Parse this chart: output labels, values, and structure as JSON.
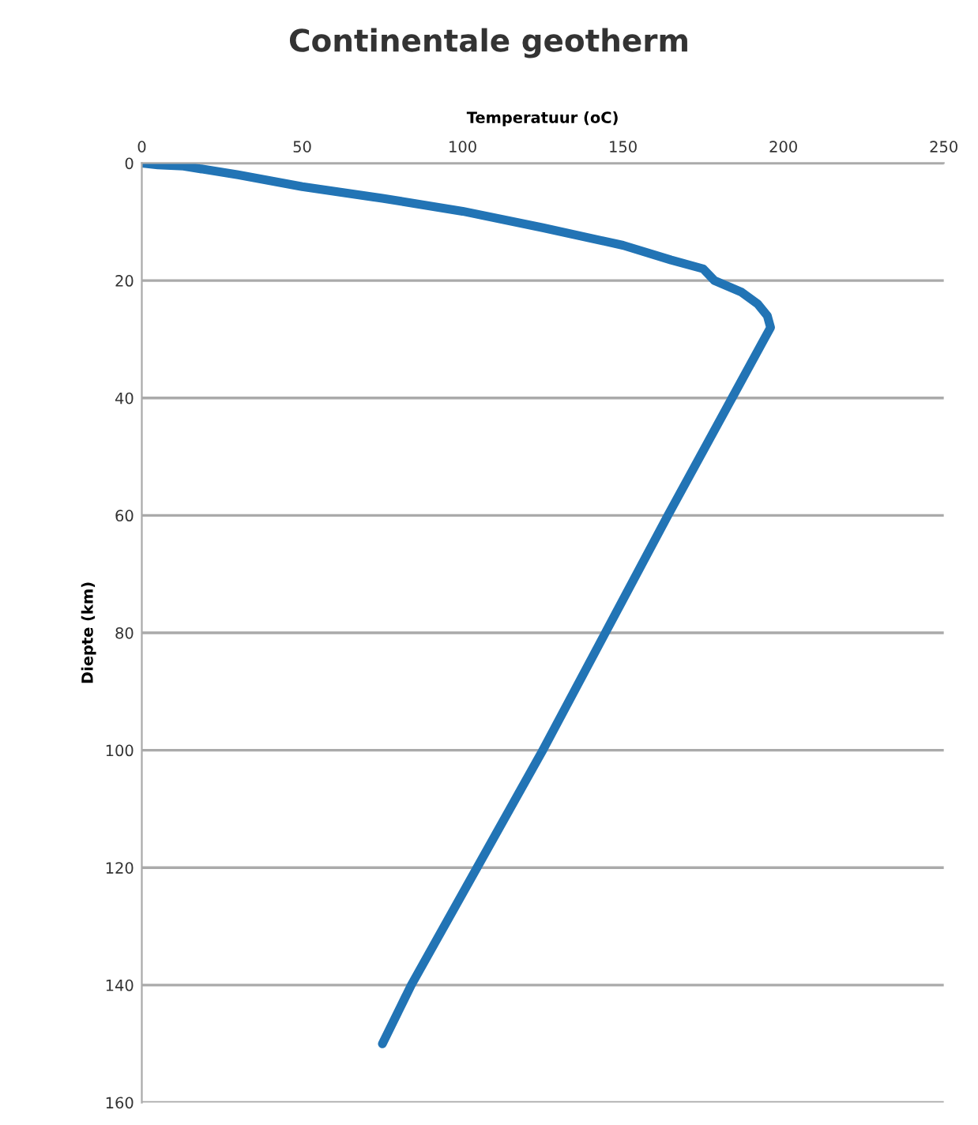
{
  "chart_data": {
    "type": "line",
    "title": "Continentale geotherm",
    "xlabel": "Temperatuur (oC)",
    "ylabel": "Diepte (km)",
    "x": [
      0,
      5,
      13,
      30,
      50,
      75,
      100,
      125,
      150,
      165,
      175,
      178.5,
      187,
      192,
      195,
      196,
      194,
      184,
      164,
      144.5,
      125,
      104.5,
      84,
      75
    ],
    "series": [
      {
        "color": "#2274b5",
        "values": [
          0,
          0.3,
          0.5,
          2,
          4,
          6,
          8.2,
          11,
          14,
          16.5,
          18,
          20,
          22,
          24,
          26,
          28,
          30,
          40,
          60,
          80,
          100,
          120,
          140,
          150
        ]
      }
    ],
    "xlim": [
      0,
      250
    ],
    "xticks": [
      0,
      50,
      100,
      150,
      200,
      250
    ],
    "ylim": [
      160,
      0
    ],
    "yticks": [
      0,
      20,
      40,
      60,
      80,
      100,
      120,
      140,
      160
    ],
    "grid": "y",
    "marker": "none",
    "line_style": "solid"
  }
}
